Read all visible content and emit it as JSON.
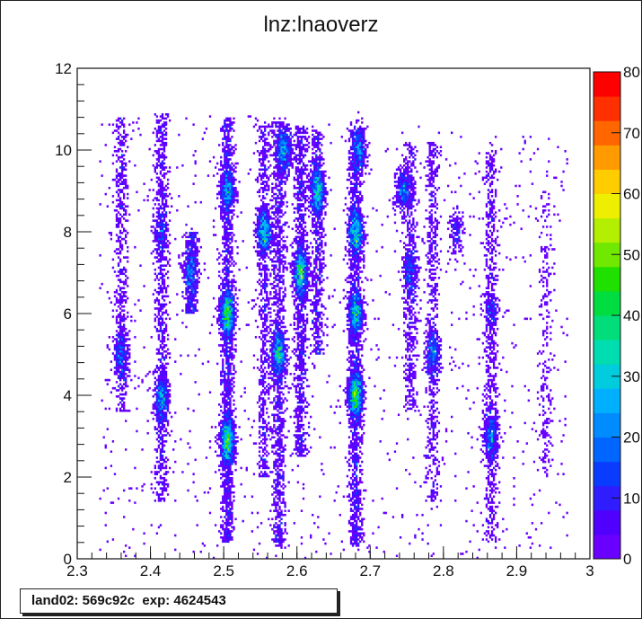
{
  "title": "lnz:lnaoverz",
  "info_box": {
    "text": "land02: 569c92c  exp: 4624543"
  },
  "chart_data": {
    "type": "heatmap",
    "title": "lnz:lnaoverz",
    "xlabel": "",
    "ylabel": "",
    "xlim": [
      2.3,
      3.0
    ],
    "ylim": [
      0,
      12
    ],
    "zlim": [
      0,
      80
    ],
    "x_ticks": [
      "2.3",
      "2.4",
      "2.5",
      "2.6",
      "2.7",
      "2.8",
      "2.9",
      "3"
    ],
    "y_ticks": [
      "0",
      "2",
      "4",
      "6",
      "8",
      "10",
      "12"
    ],
    "z_ticks": [
      "0",
      "10",
      "20",
      "30",
      "40",
      "50",
      "60",
      "70",
      "80"
    ],
    "colorscale": [
      "#6a00ff",
      "#5000ff",
      "#2f1cff",
      "#0a3cff",
      "#0066ff",
      "#008cff",
      "#00b0ff",
      "#00ccdd",
      "#00ddb0",
      "#00dd7a",
      "#00dd40",
      "#20e000",
      "#70e800",
      "#b4ee00",
      "#eeee00",
      "#ffcc00",
      "#ff9a00",
      "#ff6600",
      "#ff3000",
      "#ff0000"
    ],
    "ridges": [
      {
        "x": 2.36,
        "ymin": 3.6,
        "ymax": 10.8,
        "density": 0.35
      },
      {
        "x": 2.415,
        "ymin": 1.4,
        "ymax": 10.9,
        "density": 0.6
      },
      {
        "x": 2.455,
        "ymin": 6.0,
        "ymax": 8.0,
        "density": 0.25
      },
      {
        "x": 2.505,
        "ymin": 0.4,
        "ymax": 10.8,
        "density": 1.0
      },
      {
        "x": 2.555,
        "ymin": 2.0,
        "ymax": 10.7,
        "density": 0.45
      },
      {
        "x": 2.575,
        "ymin": 0.3,
        "ymax": 10.7,
        "density": 0.8
      },
      {
        "x": 2.605,
        "ymin": 2.5,
        "ymax": 10.6,
        "density": 0.7
      },
      {
        "x": 2.628,
        "ymin": 5.0,
        "ymax": 10.5,
        "density": 0.45
      },
      {
        "x": 2.68,
        "ymin": 0.3,
        "ymax": 10.5,
        "density": 0.95
      },
      {
        "x": 2.755,
        "ymin": 3.6,
        "ymax": 10.2,
        "density": 0.35
      },
      {
        "x": 2.785,
        "ymin": 1.4,
        "ymax": 10.2,
        "density": 0.4
      },
      {
        "x": 2.865,
        "ymin": 0.4,
        "ymax": 10.0,
        "density": 0.45
      },
      {
        "x": 2.94,
        "ymin": 2.0,
        "ymax": 9.0,
        "density": 0.15
      }
    ],
    "hotspots": [
      {
        "x": 2.36,
        "y": 5.0,
        "peak": 20
      },
      {
        "x": 2.415,
        "y": 3.9,
        "peak": 30
      },
      {
        "x": 2.415,
        "y": 8.0,
        "peak": 10
      },
      {
        "x": 2.455,
        "y": 7.0,
        "peak": 20
      },
      {
        "x": 2.505,
        "y": 2.9,
        "peak": 55
      },
      {
        "x": 2.505,
        "y": 6.0,
        "peak": 60
      },
      {
        "x": 2.505,
        "y": 9.0,
        "peak": 30
      },
      {
        "x": 2.555,
        "y": 8.0,
        "peak": 45
      },
      {
        "x": 2.575,
        "y": 5.0,
        "peak": 45
      },
      {
        "x": 2.583,
        "y": 10.0,
        "peak": 35
      },
      {
        "x": 2.605,
        "y": 7.0,
        "peak": 55
      },
      {
        "x": 2.628,
        "y": 9.0,
        "peak": 45
      },
      {
        "x": 2.68,
        "y": 4.0,
        "peak": 62
      },
      {
        "x": 2.68,
        "y": 6.0,
        "peak": 40
      },
      {
        "x": 2.68,
        "y": 8.0,
        "peak": 45
      },
      {
        "x": 2.685,
        "y": 10.0,
        "peak": 25
      },
      {
        "x": 2.745,
        "y": 9.0,
        "peak": 25
      },
      {
        "x": 2.755,
        "y": 7.0,
        "peak": 20
      },
      {
        "x": 2.785,
        "y": 5.0,
        "peak": 25
      },
      {
        "x": 2.818,
        "y": 8.0,
        "peak": 10
      },
      {
        "x": 2.865,
        "y": 3.0,
        "peak": 25
      },
      {
        "x": 2.865,
        "y": 6.0,
        "peak": 10
      }
    ]
  }
}
